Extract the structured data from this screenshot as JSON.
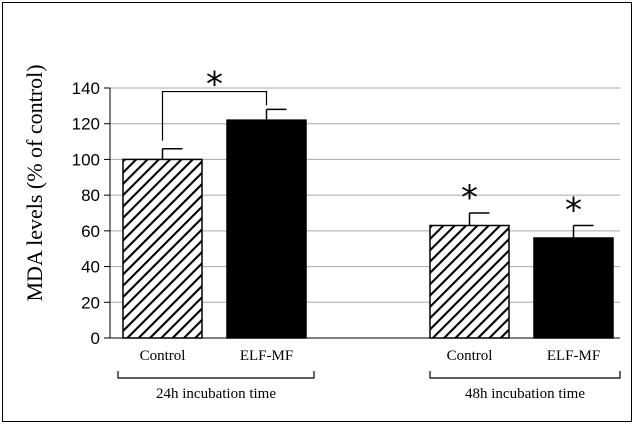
{
  "chart_data": {
    "type": "bar",
    "title": "",
    "ylabel": "MDA levels (% of control)",
    "xlabel": "",
    "ylim": [
      0,
      140
    ],
    "yticks": [
      0,
      20,
      40,
      60,
      80,
      100,
      120,
      140
    ],
    "grid": true,
    "groups": [
      {
        "label": "24h incubation time",
        "bars": [
          {
            "category": "Control",
            "value": 100,
            "error": 6,
            "pattern": "hatched",
            "star": false
          },
          {
            "category": "ELF-MF",
            "value": 122,
            "error": 6,
            "pattern": "solid",
            "star": false
          }
        ],
        "bracket_star": true
      },
      {
        "label": "48h incubation time",
        "bars": [
          {
            "category": "Control",
            "value": 63,
            "error": 7,
            "pattern": "hatched",
            "star": true
          },
          {
            "category": "ELF-MF",
            "value": 56,
            "error": 7,
            "pattern": "solid",
            "star": true
          }
        ],
        "bracket_star": false
      }
    ],
    "annotation_symbol": "*"
  }
}
